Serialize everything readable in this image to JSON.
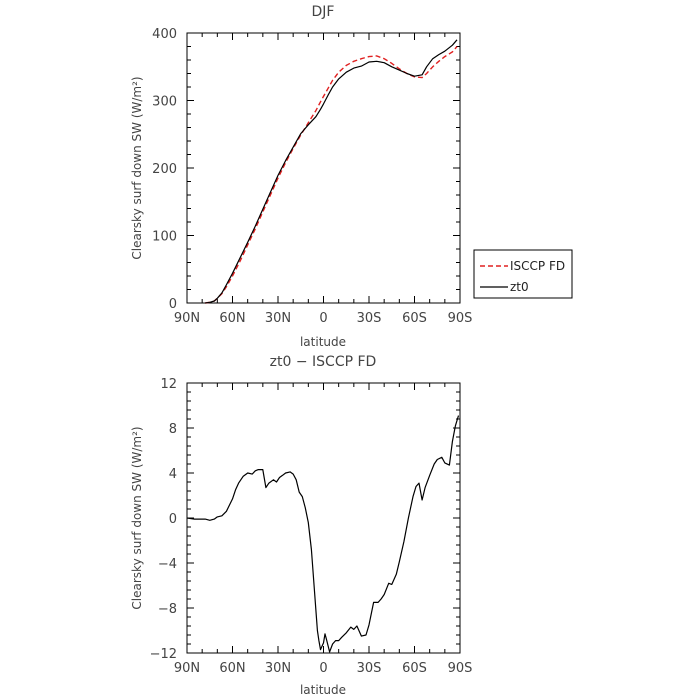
{
  "chart_data": [
    {
      "type": "line",
      "title": "DJF",
      "xlabel": "latitude",
      "ylabel": "Clearsky surf down SW (W/m²)",
      "xlim": [
        90,
        -90
      ],
      "ylim": [
        0,
        400
      ],
      "x_ticks": [
        90,
        60,
        30,
        0,
        -30,
        -60,
        -90
      ],
      "x_tick_labels": [
        "90N",
        "60N",
        "30N",
        "0",
        "30S",
        "60S",
        "90S"
      ],
      "y_ticks": [
        0,
        100,
        200,
        300,
        400
      ],
      "y_tick_labels": [
        "0",
        "100",
        "200",
        "300",
        "400"
      ],
      "legend": "right-middle",
      "series": [
        {
          "name": "ISCCP FD",
          "color": "#e02020",
          "dash": "dashed",
          "x": [
            78,
            75,
            72,
            70,
            67,
            64,
            60,
            55,
            50,
            45,
            40,
            35,
            30,
            25,
            20,
            15,
            10,
            5,
            2,
            0,
            -3,
            -6,
            -10,
            -15,
            -20,
            -25,
            -30,
            -35,
            -40,
            -45,
            -50,
            -55,
            -60,
            -65,
            -68,
            -72,
            -76,
            -80,
            -85,
            -88
          ],
          "y": [
            0,
            1,
            3,
            7,
            14,
            24,
            40,
            62,
            86,
            110,
            135,
            160,
            185,
            208,
            229,
            249,
            267,
            285,
            298,
            306,
            318,
            330,
            342,
            352,
            358,
            362,
            365,
            366,
            362,
            355,
            347,
            340,
            335,
            334,
            340,
            350,
            358,
            365,
            372,
            380
          ]
        },
        {
          "name": "zt0",
          "color": "#000000",
          "dash": "solid",
          "x": [
            78,
            75,
            72,
            70,
            67,
            64,
            60,
            55,
            50,
            45,
            40,
            35,
            30,
            25,
            20,
            15,
            10,
            5,
            2,
            0,
            -3,
            -6,
            -10,
            -15,
            -20,
            -25,
            -30,
            -35,
            -40,
            -45,
            -50,
            -55,
            -60,
            -65,
            -68,
            -72,
            -76,
            -80,
            -85,
            -88
          ],
          "y": [
            0,
            1,
            3,
            7,
            15,
            27,
            44,
            67,
            90,
            114,
            139,
            164,
            189,
            211,
            231,
            251,
            264,
            276,
            287,
            295,
            308,
            320,
            332,
            342,
            348,
            351,
            357,
            358,
            356,
            350,
            345,
            340,
            336,
            338,
            350,
            362,
            368,
            373,
            382,
            390
          ]
        }
      ]
    },
    {
      "type": "line",
      "title": "zt0 − ISCCP FD",
      "xlabel": "latitude",
      "ylabel": "Clearsky surf down SW (W/m²)",
      "xlim": [
        90,
        -90
      ],
      "ylim": [
        -12,
        12
      ],
      "x_ticks": [
        90,
        60,
        30,
        0,
        -30,
        -60,
        -90
      ],
      "x_tick_labels": [
        "90N",
        "60N",
        "30N",
        "0",
        "30S",
        "60S",
        "90S"
      ],
      "y_ticks": [
        -12,
        -8,
        -4,
        0,
        4,
        8,
        12
      ],
      "y_tick_labels": [
        "−12",
        "−8",
        "−4",
        "0",
        "4",
        "8",
        "12"
      ],
      "series": [
        {
          "color": "#000000",
          "dash": "solid",
          "x": [
            90,
            85,
            80,
            78,
            75,
            72,
            70,
            67,
            64,
            60,
            58,
            56,
            53,
            50,
            47,
            45,
            43,
            40,
            38,
            36,
            33,
            31,
            29,
            27,
            25,
            22,
            20,
            18,
            16,
            14,
            12,
            10,
            8,
            6,
            5,
            4,
            3,
            2,
            0,
            -1,
            -2,
            -4,
            -6,
            -8,
            -10,
            -12,
            -15,
            -18,
            -20,
            -22,
            -25,
            -28,
            -30,
            -33,
            -36,
            -38,
            -40,
            -43,
            -45,
            -48,
            -50,
            -53,
            -56,
            -59,
            -61,
            -63,
            -65,
            -67,
            -70,
            -73,
            -75,
            -78,
            -80,
            -83,
            -85,
            -87,
            -89
          ],
          "y": [
            0,
            -0.1,
            -0.1,
            -0.1,
            -0.2,
            -0.1,
            0.1,
            0.2,
            0.6,
            1.7,
            2.5,
            3.1,
            3.7,
            4.0,
            3.9,
            4.2,
            4.3,
            4.3,
            2.7,
            3.1,
            3.4,
            3.2,
            3.6,
            3.8,
            4.0,
            4.1,
            3.9,
            3.4,
            2.3,
            1.9,
            0.9,
            -0.4,
            -2.8,
            -6.4,
            -8.2,
            -10.0,
            -10.9,
            -11.7,
            -11.1,
            -10.3,
            -10.8,
            -11.9,
            -11.2,
            -10.9,
            -10.9,
            -10.6,
            -10.2,
            -9.7,
            -9.9,
            -9.6,
            -10.5,
            -10.4,
            -9.5,
            -7.5,
            -7.5,
            -7.2,
            -6.8,
            -5.8,
            -5.9,
            -5.0,
            -3.9,
            -2.1,
            0.0,
            1.9,
            2.8,
            3.1,
            1.6,
            2.7,
            3.8,
            4.8,
            5.2,
            5.4,
            4.9,
            4.7,
            6.8,
            8.2,
            9.1
          ]
        }
      ]
    }
  ]
}
